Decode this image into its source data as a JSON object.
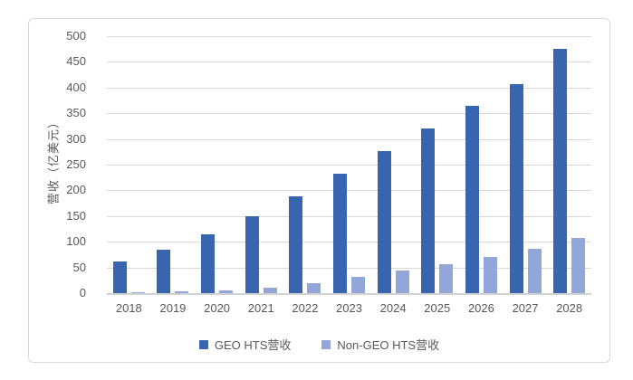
{
  "chart_data": {
    "type": "bar",
    "title": "",
    "xlabel": "",
    "ylabel": "营收（亿美元）",
    "categories": [
      "2018",
      "2019",
      "2020",
      "2021",
      "2022",
      "2023",
      "2024",
      "2025",
      "2026",
      "2027",
      "2028"
    ],
    "series": [
      {
        "name": "GEO HTS营收",
        "color": "#3765AF",
        "values": [
          62,
          85,
          115,
          150,
          188,
          232,
          277,
          320,
          365,
          406,
          475
        ]
      },
      {
        "name": "Non-GEO HTS营收",
        "color": "#93A6D9",
        "values": [
          2,
          3,
          6,
          11,
          19,
          32,
          44,
          56,
          71,
          86,
          108
        ]
      }
    ],
    "ylim": [
      0,
      500
    ],
    "yticks": [
      0,
      50,
      100,
      150,
      200,
      250,
      300,
      350,
      400,
      450,
      500
    ],
    "grid": true,
    "legend_position": "bottom"
  },
  "styles": {
    "gridline_color": "#D9D9D9",
    "baseline_color": "#D2D2D2",
    "frame_border_color": "#D9D9D9",
    "axis_text_color": "#595959",
    "background_color": "#FFFFFF"
  }
}
